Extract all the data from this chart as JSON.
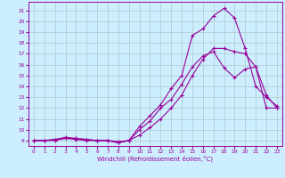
{
  "xlabel": "Windchill (Refroidissement éolien,°C)",
  "background_color": "#cceeff",
  "line_color": "#990099",
  "xlim": [
    -0.5,
    23.5
  ],
  "ylim": [
    8.5,
    21.8
  ],
  "xticks": [
    0,
    1,
    2,
    3,
    4,
    5,
    6,
    7,
    8,
    9,
    10,
    11,
    12,
    13,
    14,
    15,
    16,
    17,
    18,
    19,
    20,
    21,
    22,
    23
  ],
  "yticks": [
    9,
    10,
    11,
    12,
    13,
    14,
    15,
    16,
    17,
    18,
    19,
    20,
    21
  ],
  "line1_x": [
    0,
    1,
    2,
    3,
    4,
    5,
    6,
    7,
    8,
    9,
    10,
    11,
    12,
    13,
    14,
    15,
    16,
    17,
    18,
    19,
    20,
    21,
    22,
    23
  ],
  "line1_y": [
    9.0,
    9.0,
    9.0,
    9.2,
    9.1,
    9.0,
    9.0,
    9.0,
    8.9,
    9.0,
    9.5,
    10.2,
    11.0,
    12.0,
    13.2,
    15.0,
    16.5,
    17.5,
    17.5,
    17.2,
    17.0,
    15.8,
    12.0,
    12.0
  ],
  "line2_x": [
    0,
    1,
    2,
    3,
    4,
    5,
    6,
    7,
    8,
    9,
    10,
    11,
    12,
    13,
    14,
    15,
    16,
    17,
    18,
    19,
    20,
    21,
    22,
    23
  ],
  "line2_y": [
    9.0,
    9.0,
    9.1,
    9.2,
    9.2,
    9.1,
    9.0,
    9.0,
    8.8,
    9.0,
    10.3,
    11.3,
    12.3,
    13.8,
    15.0,
    18.7,
    19.3,
    20.5,
    21.2,
    20.3,
    17.5,
    14.0,
    13.0,
    12.2
  ],
  "line3_x": [
    0,
    1,
    2,
    3,
    4,
    5,
    6,
    7,
    8,
    9,
    10,
    11,
    12,
    13,
    14,
    15,
    16,
    17,
    18,
    19,
    20,
    21,
    22,
    23
  ],
  "line3_y": [
    9.0,
    9.0,
    9.1,
    9.3,
    9.2,
    9.1,
    9.0,
    9.0,
    8.8,
    9.0,
    10.0,
    10.8,
    12.0,
    12.8,
    14.2,
    15.8,
    16.8,
    17.2,
    15.7,
    14.8,
    15.6,
    15.8,
    13.2,
    12.0
  ],
  "grid_color": "#b0c8c8",
  "marker": "+",
  "marker_size": 3,
  "linewidth": 0.8,
  "tick_fontsize": 4.2,
  "xlabel_fontsize": 5.0
}
